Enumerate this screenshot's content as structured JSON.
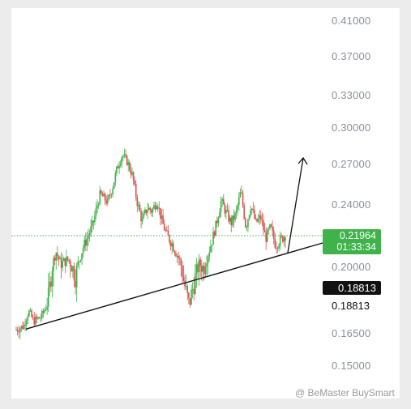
{
  "chart_data": {
    "type": "candlestick",
    "title": "",
    "xlabel": "",
    "ylabel": "",
    "y_ticks": [
      "0.41000",
      "0.37000",
      "0.33000",
      "0.30000",
      "0.27000",
      "0.24000",
      "0.21964",
      "0.20000",
      "0.18813",
      "0.16500",
      "0.15000"
    ],
    "ylim": [
      0.14,
      0.43
    ],
    "current_price": "0.21964",
    "countdown": "01:33:34",
    "marked_level": "0.18813",
    "colors": {
      "up": "#3fb24a",
      "down": "#d9534f",
      "price_line": "#3fb24a",
      "trendline": "#111111"
    },
    "price_path": [
      {
        "x": 0,
        "y": 0.168
      },
      {
        "x": 3,
        "y": 0.171
      },
      {
        "x": 5,
        "y": 0.183
      },
      {
        "x": 7,
        "y": 0.175
      },
      {
        "x": 10,
        "y": 0.178
      },
      {
        "x": 13,
        "y": 0.19
      },
      {
        "x": 16,
        "y": 0.21
      },
      {
        "x": 18,
        "y": 0.202
      },
      {
        "x": 21,
        "y": 0.205
      },
      {
        "x": 24,
        "y": 0.197
      },
      {
        "x": 27,
        "y": 0.212
      },
      {
        "x": 29,
        "y": 0.219
      },
      {
        "x": 31,
        "y": 0.227
      },
      {
        "x": 34,
        "y": 0.248
      },
      {
        "x": 37,
        "y": 0.242
      },
      {
        "x": 39,
        "y": 0.253
      },
      {
        "x": 41,
        "y": 0.268
      },
      {
        "x": 43,
        "y": 0.278
      },
      {
        "x": 45,
        "y": 0.272
      },
      {
        "x": 47,
        "y": 0.262
      },
      {
        "x": 49,
        "y": 0.242
      },
      {
        "x": 51,
        "y": 0.229
      },
      {
        "x": 53,
        "y": 0.238
      },
      {
        "x": 55,
        "y": 0.236
      },
      {
        "x": 57,
        "y": 0.243
      },
      {
        "x": 59,
        "y": 0.229
      },
      {
        "x": 61,
        "y": 0.22
      },
      {
        "x": 63,
        "y": 0.215
      },
      {
        "x": 66,
        "y": 0.205
      },
      {
        "x": 68,
        "y": 0.195
      },
      {
        "x": 70,
        "y": 0.188
      },
      {
        "x": 72,
        "y": 0.195
      },
      {
        "x": 74,
        "y": 0.202
      },
      {
        "x": 76,
        "y": 0.2
      },
      {
        "x": 79,
        "y": 0.215
      },
      {
        "x": 81,
        "y": 0.227
      },
      {
        "x": 83,
        "y": 0.243
      },
      {
        "x": 85,
        "y": 0.235
      },
      {
        "x": 87,
        "y": 0.228
      },
      {
        "x": 89,
        "y": 0.234
      },
      {
        "x": 91,
        "y": 0.25
      },
      {
        "x": 93,
        "y": 0.225
      },
      {
        "x": 95,
        "y": 0.24
      },
      {
        "x": 97,
        "y": 0.228
      },
      {
        "x": 99,
        "y": 0.232
      },
      {
        "x": 101,
        "y": 0.218
      },
      {
        "x": 103,
        "y": 0.225
      },
      {
        "x": 105,
        "y": 0.214
      },
      {
        "x": 107,
        "y": 0.217
      },
      {
        "x": 109,
        "y": 0.22
      }
    ],
    "trendline": [
      {
        "x": 0,
        "y": 0.168
      },
      {
        "x": 120,
        "y": 0.213
      }
    ],
    "projection_arrow": [
      {
        "x": 109,
        "y": 0.212
      },
      {
        "x": 114,
        "y": 0.272
      }
    ]
  },
  "watermark": "@ BeMaster BuySmart"
}
